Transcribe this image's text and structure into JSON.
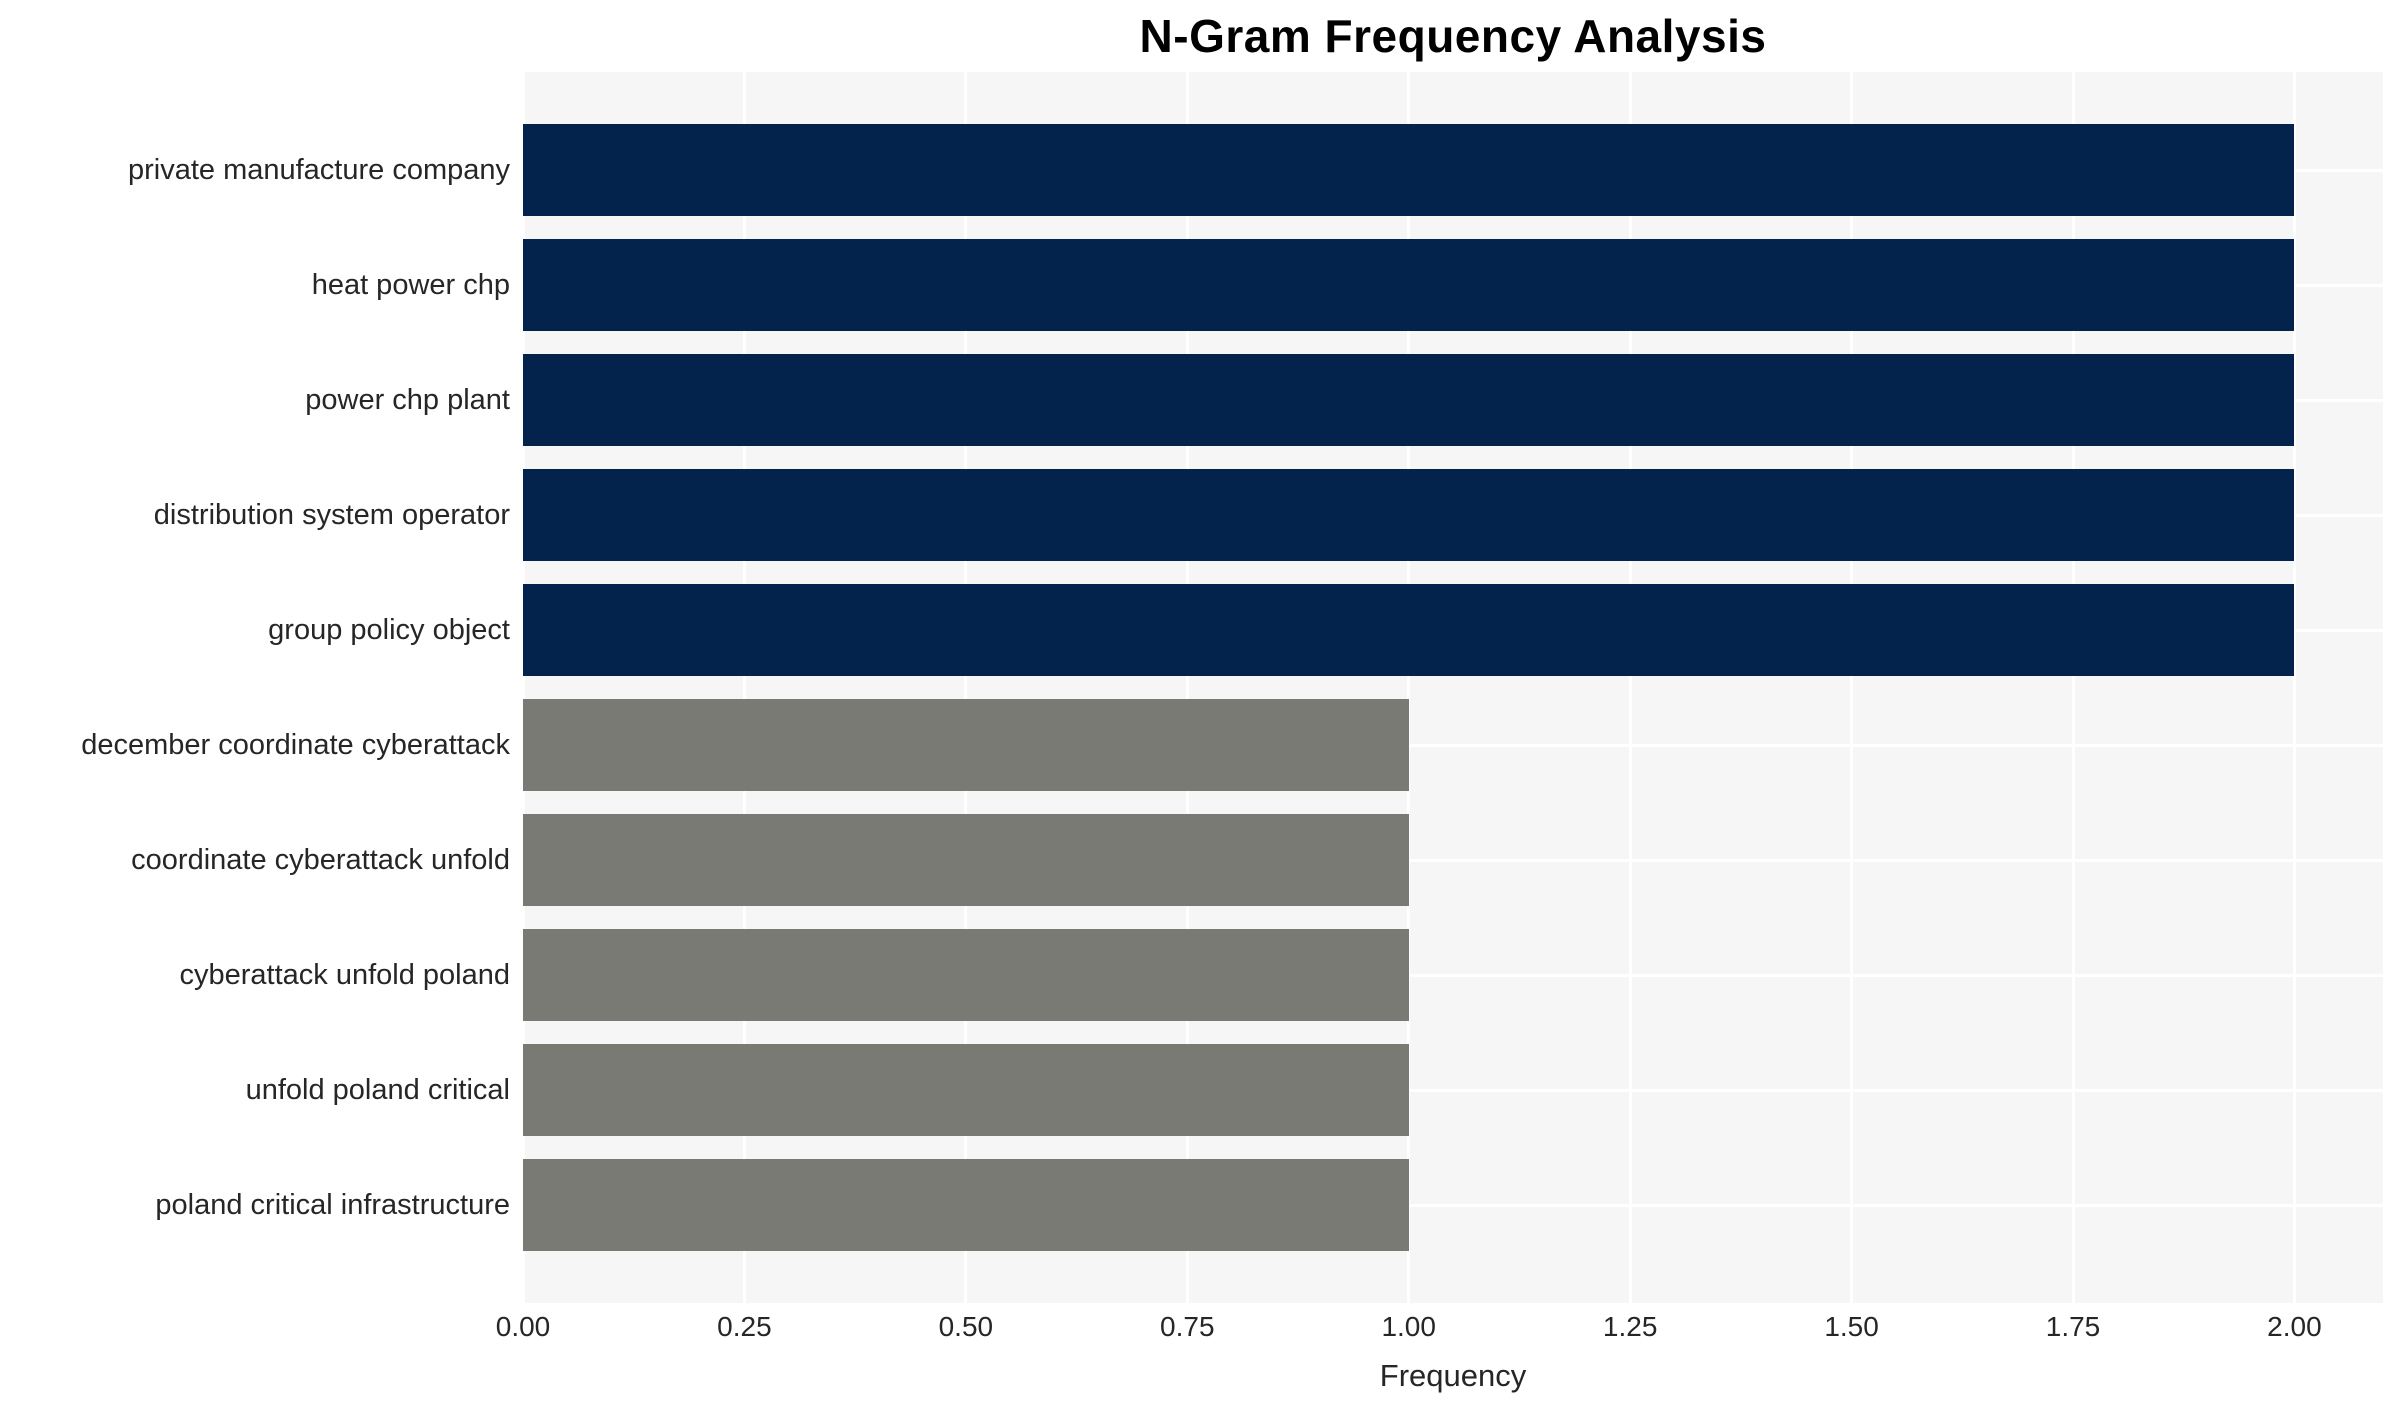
{
  "chart_data": {
    "type": "bar",
    "orientation": "horizontal",
    "title": "N-Gram Frequency Analysis",
    "xlabel": "Frequency",
    "ylabel": "",
    "categories": [
      "private manufacture company",
      "heat power chp",
      "power chp plant",
      "distribution system operator",
      "group policy object",
      "december coordinate cyberattack",
      "coordinate cyberattack unfold",
      "cyberattack unfold poland",
      "unfold poland critical",
      "poland critical infrastructure"
    ],
    "values": [
      2,
      2,
      2,
      2,
      2,
      1,
      1,
      1,
      1,
      1
    ],
    "bar_colors": [
      "#03224c",
      "#03224c",
      "#03224c",
      "#03224c",
      "#03224c",
      "#7a7a74",
      "#7a7a74",
      "#7a7a74",
      "#7a7a74",
      "#7a7a74"
    ],
    "xticks": [
      0,
      0.25,
      0.5,
      0.75,
      1.0,
      1.25,
      1.5,
      1.75,
      2.0
    ],
    "xtick_labels": [
      "0.00",
      "0.25",
      "0.50",
      "0.75",
      "1.00",
      "1.25",
      "1.50",
      "1.75",
      "2.00"
    ],
    "xlim": [
      0,
      2.1
    ],
    "grid": true,
    "legend": "none",
    "plot_background": "#f6f6f6",
    "grid_color": "#ffffff",
    "colors": {
      "high_frequency": "#03224c",
      "low_frequency": "#7a7a74"
    }
  }
}
